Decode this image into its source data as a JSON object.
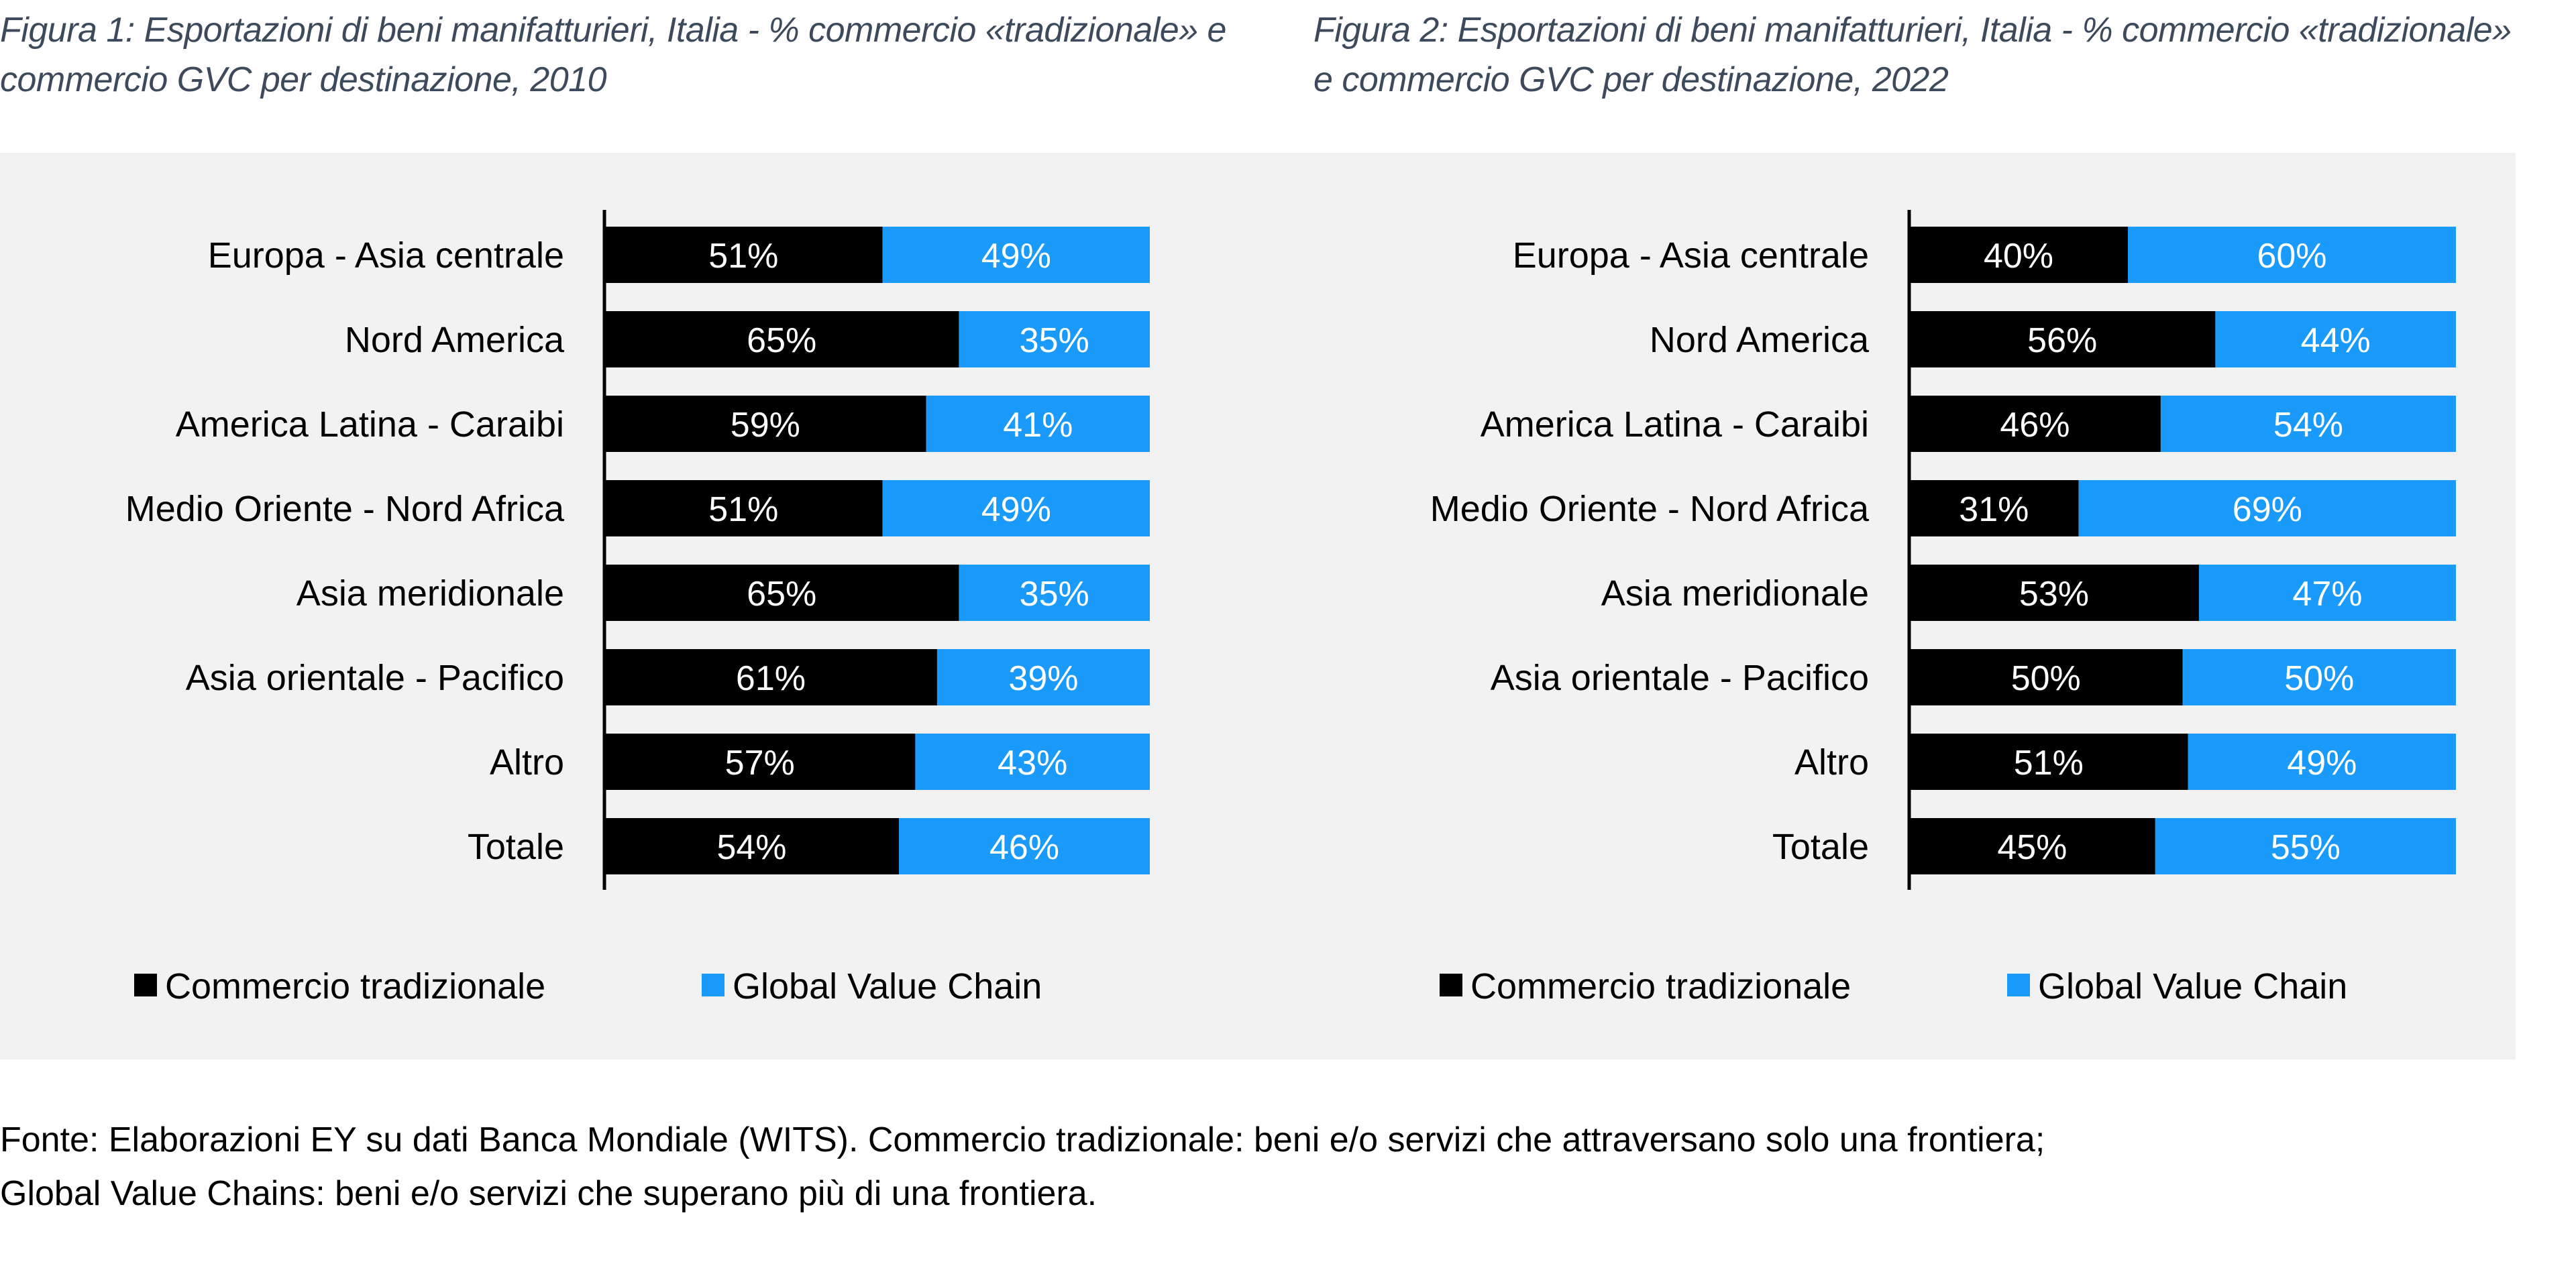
{
  "colors": {
    "tradizionale": "#000000",
    "gvc": "#1a9afa",
    "panel": "#f2f2f2",
    "title": "#3d4a5c"
  },
  "chart_data": [
    {
      "type": "bar",
      "stacked": true,
      "orientation": "horizontal",
      "title": "Figura 1: Esportazioni di beni manifatturieri, Italia - % commercio «tradizionale» e commercio GVC per destinazione, 2010",
      "categories": [
        "Europa - Asia centrale",
        "Nord America",
        "America Latina - Caraibi",
        "Medio Oriente - Nord Africa",
        "Asia meridionale",
        "Asia orientale - Pacifico",
        "Altro",
        "Totale"
      ],
      "series": [
        {
          "name": "Commercio tradizionale",
          "values": [
            51,
            65,
            59,
            51,
            65,
            61,
            57,
            54
          ]
        },
        {
          "name": "Global Value Chain",
          "values": [
            49,
            35,
            41,
            49,
            35,
            39,
            43,
            46
          ]
        }
      ],
      "xlim": [
        0,
        100
      ],
      "legend": "bottom",
      "grid": false
    },
    {
      "type": "bar",
      "stacked": true,
      "orientation": "horizontal",
      "title": "Figura 2: Esportazioni di beni manifatturieri, Italia - % commercio «tradizionale» e commercio GVC per destinazione, 2022",
      "categories": [
        "Europa - Asia centrale",
        "Nord America",
        "America Latina - Caraibi",
        "Medio Oriente - Nord Africa",
        "Asia meridionale",
        "Asia orientale - Pacifico",
        "Altro",
        "Totale"
      ],
      "series": [
        {
          "name": "Commercio tradizionale",
          "values": [
            40,
            56,
            46,
            31,
            53,
            50,
            51,
            45
          ]
        },
        {
          "name": "Global Value Chain",
          "values": [
            60,
            44,
            54,
            69,
            47,
            50,
            49,
            55
          ]
        }
      ],
      "xlim": [
        0,
        100
      ],
      "legend": "bottom",
      "grid": false
    }
  ],
  "footer": {
    "line1": "Fonte: Elaborazioni EY su dati Banca Mondiale (WITS). Commercio tradizionale: beni e/o servizi che attraversano solo una frontiera;",
    "line2": "Global Value Chains: beni e/o servizi che superano più di una frontiera."
  }
}
